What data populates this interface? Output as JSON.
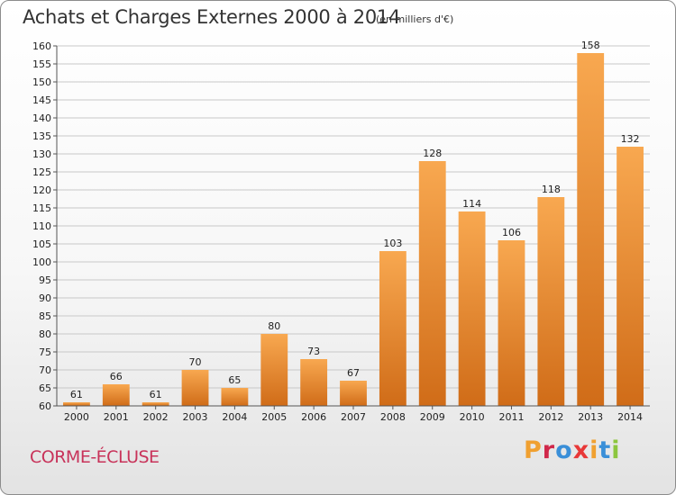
{
  "header": {
    "title": "Achats et Charges Externes 2000 à 2014",
    "subtitle": "(en milliers d'€)"
  },
  "footer": {
    "commune": "CORME-ÉCLUSE",
    "logo": "Proxiti",
    "logo_colors": [
      "#f0a030",
      "#d0284a",
      "#3a8fd8",
      "#e83838",
      "#f0a030",
      "#3a8fd8",
      "#8cc63e"
    ]
  },
  "colors": {
    "bar_light": "#f8a850",
    "bar_dark": "#d06c18",
    "grid": "#c8c8c8",
    "axis": "#555555",
    "commune_text": "#c8335a"
  },
  "chart_data": {
    "type": "bar",
    "title": "Achats et Charges Externes 2000 à 2014",
    "subtitle": "(en milliers d'€)",
    "categories": [
      "2000",
      "2001",
      "2002",
      "2003",
      "2004",
      "2005",
      "2006",
      "2007",
      "2008",
      "2009",
      "2010",
      "2011",
      "2012",
      "2013",
      "2014"
    ],
    "values": [
      61,
      66,
      61,
      70,
      65,
      80,
      73,
      67,
      103,
      128,
      114,
      106,
      118,
      158,
      132
    ],
    "ylim": [
      60,
      160
    ],
    "ytick_step": 5,
    "grid": true,
    "data_labels": true
  }
}
